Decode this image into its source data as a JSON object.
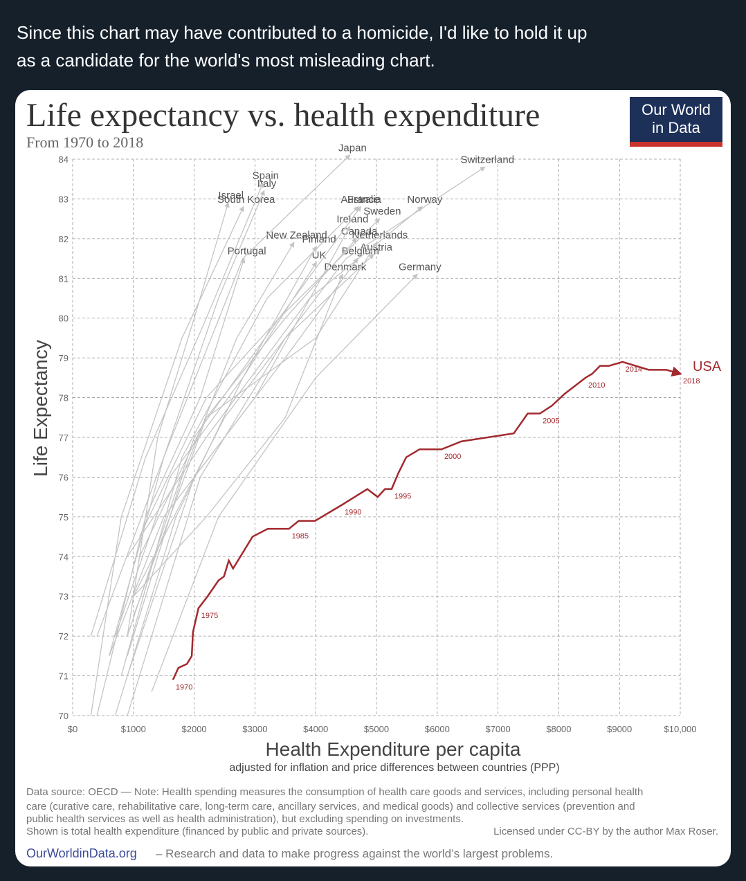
{
  "tweet": {
    "text": [
      "Since this chart may have contributed to a homicide, I'd like to hold it up",
      "as a candidate for the world's most misleading chart."
    ]
  },
  "chart_data": {
    "type": "line",
    "title": "Life expectancy vs. health expenditure",
    "subtitle": "From 1970 to 2018",
    "logo": [
      "Our World",
      "in Data"
    ],
    "x_label": "Health Expenditure per capita",
    "x_sublabel": "adjusted for inflation and price differences between countries (PPP)",
    "y_label": "Life Expectancy",
    "xlim": [
      0,
      10000
    ],
    "ylim": [
      70,
      84
    ],
    "xticks": [
      {
        "value": 0,
        "label": "$0"
      },
      {
        "value": 1000,
        "label": "$1000"
      },
      {
        "value": 2000,
        "label": "$2000"
      },
      {
        "value": 3000,
        "label": "$3000"
      },
      {
        "value": 4000,
        "label": "$4000"
      },
      {
        "value": 5000,
        "label": "$5000"
      },
      {
        "value": 6000,
        "label": "$6000"
      },
      {
        "value": 7000,
        "label": "$7000"
      },
      {
        "value": 8000,
        "label": "$8000"
      },
      {
        "value": 9000,
        "label": "$9000"
      },
      {
        "value": 10000,
        "label": "$10,000"
      }
    ],
    "yticks": [
      70,
      71,
      72,
      73,
      74,
      75,
      76,
      77,
      78,
      79,
      80,
      81,
      82,
      83,
      84
    ],
    "grid": true,
    "series": [
      {
        "name": "USA",
        "color": "#a2292e",
        "x": [
          1650,
          1740,
          1880,
          1960,
          1980,
          2070,
          2220,
          2400,
          2490,
          2570,
          2640,
          2960,
          3210,
          3560,
          3720,
          3990,
          4430,
          4850,
          5020,
          5140,
          5250,
          5360,
          5490,
          5710,
          6070,
          6400,
          7260,
          7490,
          7690,
          7890,
          8100,
          8440,
          8550,
          8680,
          8830,
          9050,
          9480,
          9770,
          10000
        ],
        "values": [
          70.9,
          71.2,
          71.3,
          71.5,
          72.1,
          72.7,
          73.0,
          73.4,
          73.5,
          73.9,
          73.7,
          74.5,
          74.7,
          74.7,
          74.9,
          74.9,
          75.3,
          75.7,
          75.5,
          75.7,
          75.7,
          76.1,
          76.5,
          76.7,
          76.7,
          76.9,
          77.1,
          77.6,
          77.6,
          77.8,
          78.1,
          78.5,
          78.6,
          78.8,
          78.8,
          78.9,
          78.7,
          78.7,
          78.6
        ],
        "year_labels": [
          "1970",
          null,
          null,
          null,
          null,
          "1975",
          null,
          null,
          null,
          null,
          null,
          null,
          null,
          "1985",
          null,
          null,
          "1990",
          null,
          null,
          null,
          "1995",
          null,
          null,
          null,
          "2000",
          null,
          null,
          null,
          "2005",
          null,
          null,
          "2010",
          null,
          null,
          null,
          "2014",
          null,
          null,
          "2018"
        ]
      },
      {
        "name": "Japan",
        "color": "#c4c4c4",
        "x": [
          400,
          1500,
          2800,
          4560
        ],
        "values": [
          72,
          76.5,
          81.5,
          84.1
        ]
      },
      {
        "name": "Switzerland",
        "color": "#c4c4c4",
        "x": [
          1000,
          2500,
          4500,
          6780
        ],
        "values": [
          73,
          77.5,
          81.5,
          83.8
        ]
      },
      {
        "name": "Spain",
        "color": "#c4c4c4",
        "x": [
          300,
          1200,
          2200,
          3130
        ],
        "values": [
          72,
          76.5,
          80,
          83.4
        ]
      },
      {
        "name": "Italy",
        "color": "#c4c4c4",
        "x": [
          600,
          1500,
          2400,
          3150
        ],
        "values": [
          71.5,
          76.5,
          80.5,
          83.2
        ]
      },
      {
        "name": "Israel",
        "color": "#c4c4c4",
        "x": [
          900,
          1400,
          2000,
          2560
        ],
        "values": [
          72,
          77,
          80,
          82.9
        ]
      },
      {
        "name": "South Korea",
        "color": "#c4c4c4",
        "x": [
          300,
          800,
          1800,
          2810
        ],
        "values": [
          70,
          75,
          79.5,
          82.8
        ]
      },
      {
        "name": "Australia",
        "color": "#c4c4c4",
        "x": [
          800,
          1800,
          3200,
          4700
        ],
        "values": [
          71,
          76.5,
          80.5,
          82.8
        ]
      },
      {
        "name": "France",
        "color": "#c4c4c4",
        "x": [
          900,
          2000,
          3400,
          4740
        ],
        "values": [
          72,
          77,
          80,
          82.8
        ]
      },
      {
        "name": "Norway",
        "color": "#c4c4c4",
        "x": [
          900,
          2200,
          3900,
          5750
        ],
        "values": [
          74,
          77,
          80.5,
          82.8
        ]
      },
      {
        "name": "Sweden",
        "color": "#c4c4c4",
        "x": [
          1100,
          2200,
          3400,
          5050
        ],
        "values": [
          74.5,
          78,
          80,
          82.5
        ]
      },
      {
        "name": "Ireland",
        "color": "#c4c4c4",
        "x": [
          600,
          1500,
          3000,
          4560
        ],
        "values": [
          71.5,
          75,
          78,
          82.3
        ]
      },
      {
        "name": "Canada",
        "color": "#c4c4c4",
        "x": [
          1000,
          2200,
          3500,
          4670
        ],
        "values": [
          72.5,
          77.5,
          80,
          82.0
        ]
      },
      {
        "name": "New Zealand",
        "color": "#c4c4c4",
        "x": [
          900,
          1800,
          2700,
          3640
        ],
        "values": [
          71.5,
          76,
          79.5,
          81.9
        ]
      },
      {
        "name": "Netherlands",
        "color": "#c4c4c4",
        "x": [
          1100,
          2200,
          4000,
          5010
        ],
        "values": [
          74,
          77.5,
          79.5,
          81.9
        ]
      },
      {
        "name": "Finland",
        "color": "#c4c4c4",
        "x": [
          700,
          1700,
          2800,
          4010
        ],
        "values": [
          70,
          75,
          78.5,
          81.8
        ]
      },
      {
        "name": "Austria",
        "color": "#c4c4c4",
        "x": [
          900,
          2100,
          3500,
          4950
        ],
        "values": [
          70,
          76,
          79.5,
          81.6
        ]
      },
      {
        "name": "Portugal",
        "color": "#c4c4c4",
        "x": [
          400,
          1200,
          2100,
          2820
        ],
        "values": [
          70,
          75,
          78,
          81.5
        ]
      },
      {
        "name": "Belgium",
        "color": "#c4c4c4",
        "x": [
          900,
          2000,
          3500,
          4690
        ],
        "values": [
          71,
          76,
          79,
          81.5
        ]
      },
      {
        "name": "UK",
        "color": "#c4c4c4",
        "x": [
          700,
          1600,
          2800,
          4010
        ],
        "values": [
          72,
          76,
          78.5,
          81.4
        ]
      },
      {
        "name": "Denmark",
        "color": "#c4c4c4",
        "x": [
          1000,
          2200,
          3500,
          4440
        ],
        "values": [
          73,
          75,
          77.5,
          81.1
        ]
      },
      {
        "name": "Germany",
        "color": "#c4c4c4",
        "x": [
          1300,
          2400,
          4000,
          5670
        ],
        "values": [
          70.6,
          75,
          78.5,
          81.1
        ]
      }
    ]
  },
  "footer": {
    "notes": [
      "Data source: OECD — Note: Health spending measures the consumption of health care goods and services, including personal health",
      "care (curative care, rehabilitative care, long-term care, ancillary services, and medical goods) and collective services (prevention and",
      "public health services as well as health administration), but excluding spending on investments.",
      "Shown is total health expenditure (financed by public and private sources)."
    ],
    "license": "Licensed under CC-BY by the author Max Roser.",
    "site": "OurWorldinData.org",
    "tagline": "– Research and data to make progress against the world’s largest problems."
  }
}
